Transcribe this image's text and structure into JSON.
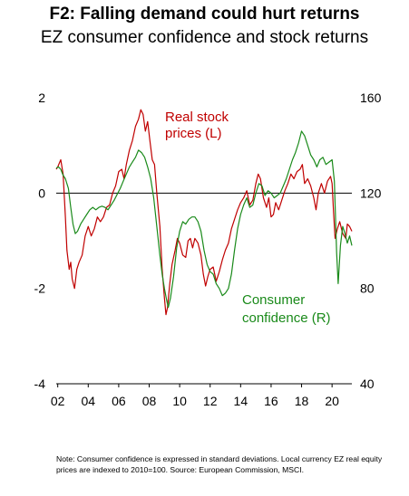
{
  "title": "F2: Falling demand could hurt returns",
  "subtitle": "EZ consumer confidence and stock returns",
  "note": "Note: Consumer confidence is expressed in standard deviations. Local currency EZ real equity prices are indexed to 2010=100. Source: European Commission, MSCI.",
  "colors": {
    "stock": "#c00000",
    "confidence": "#1a8a1a",
    "axis": "#000000"
  },
  "chart_data": {
    "type": "line",
    "x_ticks": [
      "02",
      "04",
      "06",
      "08",
      "10",
      "12",
      "14",
      "16",
      "18",
      "20"
    ],
    "y_left": {
      "ticks": [
        "2",
        "0",
        "-2",
        "-4"
      ],
      "range": [
        -4,
        2
      ]
    },
    "y_right": {
      "ticks": [
        "160",
        "120",
        "80",
        "40"
      ],
      "range": [
        40,
        160
      ]
    },
    "annotations": {
      "stock": [
        "Real stock",
        "prices (L)"
      ],
      "confidence": [
        "Consumer",
        "confidence (R)"
      ]
    },
    "series": [
      {
        "name": "Real stock prices (L)",
        "axis": "left",
        "points": [
          [
            2001.9,
            0.5
          ],
          [
            2002.0,
            0.55
          ],
          [
            2002.2,
            0.7
          ],
          [
            2002.35,
            0.4
          ],
          [
            2002.5,
            -0.5
          ],
          [
            2002.6,
            -1.2
          ],
          [
            2002.75,
            -1.6
          ],
          [
            2002.85,
            -1.45
          ],
          [
            2002.95,
            -1.8
          ],
          [
            2003.1,
            -2.0
          ],
          [
            2003.25,
            -1.6
          ],
          [
            2003.4,
            -1.45
          ],
          [
            2003.6,
            -1.3
          ],
          [
            2003.8,
            -0.9
          ],
          [
            2004.0,
            -0.7
          ],
          [
            2004.2,
            -0.9
          ],
          [
            2004.4,
            -0.75
          ],
          [
            2004.6,
            -0.5
          ],
          [
            2004.8,
            -0.6
          ],
          [
            2005.0,
            -0.5
          ],
          [
            2005.2,
            -0.3
          ],
          [
            2005.4,
            -0.25
          ],
          [
            2005.6,
            0.0
          ],
          [
            2005.8,
            0.15
          ],
          [
            2006.0,
            0.45
          ],
          [
            2006.2,
            0.5
          ],
          [
            2006.35,
            0.3
          ],
          [
            2006.5,
            0.6
          ],
          [
            2006.7,
            0.9
          ],
          [
            2006.9,
            1.1
          ],
          [
            2007.1,
            1.4
          ],
          [
            2007.3,
            1.55
          ],
          [
            2007.45,
            1.75
          ],
          [
            2007.6,
            1.65
          ],
          [
            2007.75,
            1.3
          ],
          [
            2007.9,
            1.5
          ],
          [
            2008.05,
            1.1
          ],
          [
            2008.2,
            0.7
          ],
          [
            2008.35,
            0.6
          ],
          [
            2008.5,
            0.0
          ],
          [
            2008.7,
            -0.7
          ],
          [
            2008.85,
            -1.6
          ],
          [
            2009.0,
            -2.2
          ],
          [
            2009.1,
            -2.55
          ],
          [
            2009.2,
            -2.4
          ],
          [
            2009.35,
            -1.9
          ],
          [
            2009.5,
            -1.5
          ],
          [
            2009.7,
            -1.2
          ],
          [
            2009.85,
            -0.95
          ],
          [
            2010.0,
            -1.05
          ],
          [
            2010.2,
            -1.3
          ],
          [
            2010.4,
            -1.35
          ],
          [
            2010.55,
            -1.0
          ],
          [
            2010.7,
            -0.95
          ],
          [
            2010.85,
            -1.15
          ],
          [
            2011.0,
            -0.95
          ],
          [
            2011.2,
            -1.05
          ],
          [
            2011.4,
            -1.3
          ],
          [
            2011.55,
            -1.7
          ],
          [
            2011.7,
            -1.95
          ],
          [
            2011.85,
            -1.75
          ],
          [
            2012.0,
            -1.6
          ],
          [
            2012.2,
            -1.55
          ],
          [
            2012.4,
            -1.85
          ],
          [
            2012.6,
            -1.65
          ],
          [
            2012.8,
            -1.4
          ],
          [
            2013.0,
            -1.2
          ],
          [
            2013.2,
            -1.05
          ],
          [
            2013.4,
            -0.75
          ],
          [
            2013.6,
            -0.55
          ],
          [
            2013.8,
            -0.35
          ],
          [
            2014.0,
            -0.2
          ],
          [
            2014.2,
            -0.1
          ],
          [
            2014.4,
            0.05
          ],
          [
            2014.6,
            -0.25
          ],
          [
            2014.8,
            -0.15
          ],
          [
            2015.0,
            0.2
          ],
          [
            2015.15,
            0.4
          ],
          [
            2015.3,
            0.3
          ],
          [
            2015.5,
            -0.1
          ],
          [
            2015.7,
            -0.3
          ],
          [
            2015.85,
            -0.1
          ],
          [
            2016.0,
            -0.5
          ],
          [
            2016.15,
            -0.45
          ],
          [
            2016.3,
            -0.2
          ],
          [
            2016.5,
            -0.35
          ],
          [
            2016.7,
            -0.15
          ],
          [
            2016.9,
            0.05
          ],
          [
            2017.1,
            0.2
          ],
          [
            2017.3,
            0.4
          ],
          [
            2017.5,
            0.3
          ],
          [
            2017.7,
            0.45
          ],
          [
            2017.9,
            0.5
          ],
          [
            2018.05,
            0.6
          ],
          [
            2018.2,
            0.2
          ],
          [
            2018.4,
            0.3
          ],
          [
            2018.6,
            0.15
          ],
          [
            2018.8,
            -0.1
          ],
          [
            2018.95,
            -0.35
          ],
          [
            2019.1,
            0.0
          ],
          [
            2019.3,
            0.2
          ],
          [
            2019.5,
            0.0
          ],
          [
            2019.7,
            0.25
          ],
          [
            2019.9,
            0.35
          ],
          [
            2020.0,
            0.2
          ],
          [
            2020.1,
            -0.4
          ],
          [
            2020.2,
            -0.95
          ],
          [
            2020.35,
            -0.75
          ],
          [
            2020.5,
            -0.6
          ],
          [
            2020.7,
            -0.85
          ],
          [
            2020.9,
            -0.95
          ],
          [
            2021.0,
            -0.65
          ],
          [
            2021.15,
            -0.7
          ],
          [
            2021.3,
            -0.8
          ]
        ]
      },
      {
        "name": "Consumer confidence (R)",
        "axis": "right",
        "points": [
          [
            2001.9,
            130.5
          ],
          [
            2002.05,
            131.0
          ],
          [
            2002.2,
            130.0
          ],
          [
            2002.35,
            127.5
          ],
          [
            2002.5,
            126.0
          ],
          [
            2002.7,
            122.0
          ],
          [
            2002.85,
            114.0
          ],
          [
            2003.0,
            107.0
          ],
          [
            2003.15,
            103.0
          ],
          [
            2003.3,
            104.0
          ],
          [
            2003.5,
            107.0
          ],
          [
            2003.7,
            109.0
          ],
          [
            2003.9,
            111.0
          ],
          [
            2004.1,
            113.0
          ],
          [
            2004.3,
            114.0
          ],
          [
            2004.5,
            113.0
          ],
          [
            2004.7,
            114.0
          ],
          [
            2004.9,
            114.5
          ],
          [
            2005.1,
            114.0
          ],
          [
            2005.3,
            113.0
          ],
          [
            2005.5,
            115.0
          ],
          [
            2005.7,
            117.0
          ],
          [
            2005.9,
            119.5
          ],
          [
            2006.1,
            122.0
          ],
          [
            2006.3,
            125.0
          ],
          [
            2006.5,
            128.0
          ],
          [
            2006.7,
            131.0
          ],
          [
            2006.9,
            133.0
          ],
          [
            2007.1,
            135.0
          ],
          [
            2007.3,
            138.0
          ],
          [
            2007.5,
            137.0
          ],
          [
            2007.7,
            135.0
          ],
          [
            2007.9,
            131.0
          ],
          [
            2008.1,
            126.0
          ],
          [
            2008.3,
            118.0
          ],
          [
            2008.5,
            106.0
          ],
          [
            2008.7,
            94.0
          ],
          [
            2008.85,
            86.0
          ],
          [
            2009.0,
            80.0
          ],
          [
            2009.15,
            75.0
          ],
          [
            2009.25,
            72.0
          ],
          [
            2009.4,
            76.0
          ],
          [
            2009.6,
            85.0
          ],
          [
            2009.8,
            97.0
          ],
          [
            2010.0,
            104.0
          ],
          [
            2010.2,
            108.0
          ],
          [
            2010.4,
            107.0
          ],
          [
            2010.6,
            109.0
          ],
          [
            2010.8,
            110.0
          ],
          [
            2011.0,
            110.0
          ],
          [
            2011.2,
            108.0
          ],
          [
            2011.4,
            104.0
          ],
          [
            2011.6,
            96.0
          ],
          [
            2011.8,
            90.0
          ],
          [
            2012.0,
            87.0
          ],
          [
            2012.2,
            86.0
          ],
          [
            2012.4,
            82.0
          ],
          [
            2012.6,
            80.0
          ],
          [
            2012.8,
            77.0
          ],
          [
            2013.0,
            78.0
          ],
          [
            2013.2,
            80.0
          ],
          [
            2013.4,
            86.0
          ],
          [
            2013.6,
            96.0
          ],
          [
            2013.8,
            105.0
          ],
          [
            2014.0,
            111.0
          ],
          [
            2014.2,
            115.0
          ],
          [
            2014.4,
            118.0
          ],
          [
            2014.6,
            114.0
          ],
          [
            2014.8,
            115.0
          ],
          [
            2015.0,
            120.0
          ],
          [
            2015.2,
            124.0
          ],
          [
            2015.4,
            123.0
          ],
          [
            2015.6,
            119.0
          ],
          [
            2015.8,
            121.0
          ],
          [
            2016.0,
            120.0
          ],
          [
            2016.2,
            118.0
          ],
          [
            2016.4,
            119.0
          ],
          [
            2016.6,
            120.0
          ],
          [
            2016.8,
            123.0
          ],
          [
            2017.0,
            126.0
          ],
          [
            2017.2,
            130.0
          ],
          [
            2017.4,
            134.0
          ],
          [
            2017.6,
            137.0
          ],
          [
            2017.8,
            141.0
          ],
          [
            2018.0,
            146.0
          ],
          [
            2018.2,
            144.0
          ],
          [
            2018.4,
            140.0
          ],
          [
            2018.6,
            136.0
          ],
          [
            2018.8,
            134.0
          ],
          [
            2019.0,
            131.0
          ],
          [
            2019.2,
            134.0
          ],
          [
            2019.4,
            135.0
          ],
          [
            2019.6,
            132.0
          ],
          [
            2019.8,
            133.0
          ],
          [
            2020.0,
            134.0
          ],
          [
            2020.15,
            125.0
          ],
          [
            2020.3,
            95.0
          ],
          [
            2020.4,
            82.0
          ],
          [
            2020.55,
            98.0
          ],
          [
            2020.7,
            106.0
          ],
          [
            2020.85,
            103.0
          ],
          [
            2021.0,
            99.0
          ],
          [
            2021.15,
            102.0
          ],
          [
            2021.3,
            98.0
          ]
        ]
      }
    ]
  }
}
